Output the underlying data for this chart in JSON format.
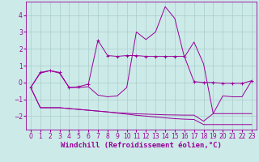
{
  "x": [
    0,
    1,
    2,
    3,
    4,
    5,
    6,
    7,
    8,
    9,
    10,
    11,
    12,
    13,
    14,
    15,
    16,
    17,
    18,
    19,
    20,
    21,
    22,
    23
  ],
  "line1_marked": [
    -0.3,
    0.6,
    0.7,
    0.6,
    -0.3,
    -0.25,
    -0.1,
    2.5,
    1.6,
    1.55,
    1.6,
    1.6,
    1.55,
    1.55,
    1.55,
    1.55,
    1.55,
    0.05,
    0.0,
    0.0,
    -0.05,
    -0.05,
    -0.05,
    0.1
  ],
  "line2": [
    -0.3,
    0.55,
    0.7,
    0.55,
    -0.3,
    -0.3,
    -0.25,
    -0.75,
    -0.85,
    -0.8,
    -0.3,
    3.0,
    2.55,
    3.0,
    4.5,
    3.8,
    1.5,
    2.4,
    1.1,
    -1.85,
    -0.8,
    -0.85,
    -0.85,
    0.1
  ],
  "line3": [
    -0.3,
    -1.5,
    -1.5,
    -1.5,
    -1.55,
    -1.6,
    -1.65,
    -1.7,
    -1.75,
    -1.8,
    -1.83,
    -1.86,
    -1.88,
    -1.9,
    -1.92,
    -1.93,
    -1.94,
    -1.94,
    -2.3,
    -1.85,
    -1.85,
    -1.85,
    -1.85,
    -1.85
  ],
  "line4": [
    -0.3,
    -1.5,
    -1.5,
    -1.5,
    -1.55,
    -1.6,
    -1.65,
    -1.7,
    -1.75,
    -1.82,
    -1.88,
    -1.95,
    -2.0,
    -2.05,
    -2.1,
    -2.15,
    -2.18,
    -2.2,
    -2.5,
    -2.5,
    -2.5,
    -2.5,
    -2.5,
    -2.5
  ],
  "line_color": "#990099",
  "bg_color": "#cceae8",
  "grid_color": "#aacccc",
  "xlim": [
    -0.5,
    23.5
  ],
  "ylim": [
    -2.8,
    4.8
  ],
  "yticks": [
    -2,
    -1,
    0,
    1,
    2,
    3,
    4
  ],
  "xticks": [
    0,
    1,
    2,
    3,
    4,
    5,
    6,
    7,
    8,
    9,
    10,
    11,
    12,
    13,
    14,
    15,
    16,
    17,
    18,
    19,
    20,
    21,
    22,
    23
  ],
  "xlabel": "Windchill (Refroidissement éolien,°C)",
  "tick_fontsize": 5.5,
  "label_fontsize": 6.5
}
